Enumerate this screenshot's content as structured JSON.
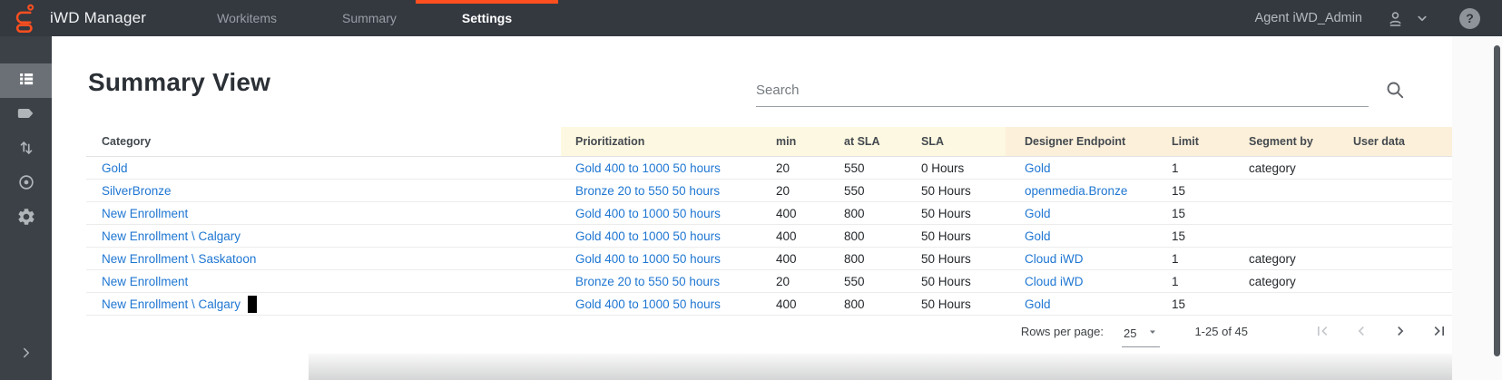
{
  "topbar": {
    "app_title": "iWD Manager",
    "tabs": [
      {
        "label": "Workitems"
      },
      {
        "label": "Summary"
      },
      {
        "label": "Settings"
      }
    ],
    "active_tab": "Settings",
    "user_label": "Agent iWD_Admin",
    "help_glyph": "?"
  },
  "sidebar": {
    "items": [
      {
        "icon": "list-icon",
        "selected": true
      },
      {
        "icon": "tag-icon",
        "selected": false
      },
      {
        "icon": "sort-arrows-icon",
        "selected": false
      },
      {
        "icon": "target-icon",
        "selected": false
      },
      {
        "icon": "gear-icon",
        "selected": false
      }
    ],
    "expand_icon": "chevron-right-icon"
  },
  "main": {
    "page_title": "Summary View",
    "search": {
      "placeholder": "Search",
      "value": ""
    },
    "table": {
      "columns": [
        {
          "label": "Category"
        },
        {
          "label": "Prioritization"
        },
        {
          "label": "min"
        },
        {
          "label": "at SLA"
        },
        {
          "label": "SLA"
        },
        {
          "label": "Designer Endpoint"
        },
        {
          "label": "Limit"
        },
        {
          "label": "Segment by"
        },
        {
          "label": "User data"
        }
      ],
      "link_columns": [
        0,
        1,
        5
      ],
      "cursor_row": 6,
      "rows": [
        [
          "Gold",
          "Gold 400 to 1000 50 hours",
          "20",
          "550",
          "0 Hours",
          "Gold",
          "1",
          "category",
          ""
        ],
        [
          "SilverBronze",
          "Bronze 20 to 550 50 hours",
          "20",
          "550",
          "50 Hours",
          "openmedia.Bronze",
          "15",
          "",
          ""
        ],
        [
          "New Enrollment",
          "Gold 400 to 1000 50 hours",
          "400",
          "800",
          "50 Hours",
          "Gold",
          "15",
          "",
          ""
        ],
        [
          "New Enrollment \\ Calgary",
          "Gold 400 to 1000 50 hours",
          "400",
          "800",
          "50 Hours",
          "Gold",
          "15",
          "",
          ""
        ],
        [
          "New Enrollment \\ Saskatoon",
          "Gold 400 to 1000 50 hours",
          "400",
          "800",
          "50 Hours",
          "Cloud iWD",
          "1",
          "category",
          ""
        ],
        [
          "New Enrollment",
          "Bronze 20 to 550 50 hours",
          "20",
          "550",
          "50 Hours",
          "Cloud iWD",
          "1",
          "category",
          ""
        ],
        [
          "New Enrollment \\ Calgary",
          "Gold 400 to 1000 50 hours",
          "400",
          "800",
          "50 Hours",
          "Gold",
          "15",
          "",
          ""
        ]
      ]
    },
    "pagination": {
      "rows_per_page_label": "Rows per page:",
      "rows_per_page_value": "25",
      "range_label": "1-25 of 45"
    }
  },
  "colors": {
    "accent_orange": "#ff4f1f",
    "link_blue": "#1e76d2",
    "header_yellow": "#fdf8e1",
    "header_peach": "#fcf0da",
    "topbar_bg": "#343940",
    "sidebar_bg": "#3c4147"
  }
}
